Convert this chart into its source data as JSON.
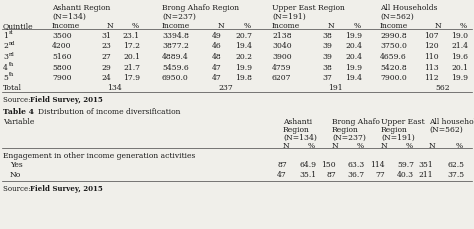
{
  "table1_data": [
    [
      "1",
      "st",
      "3500",
      "31",
      "23.1",
      "3394.8",
      "49",
      "20.7",
      "2138",
      "38",
      "19.9",
      "2990.8",
      "107",
      "19.0"
    ],
    [
      "2",
      "nd",
      "4200",
      "23",
      "17.2",
      "3877.2",
      "46",
      "19.4",
      "3040",
      "39",
      "20.4",
      "3750.0",
      "120",
      "21.4"
    ],
    [
      "3",
      "rd",
      "5160",
      "27",
      "20.1",
      "4889.4",
      "48",
      "20.2",
      "3900",
      "39",
      "20.4",
      "4659.6",
      "110",
      "19.6"
    ],
    [
      "4",
      "th",
      "5800",
      "29",
      "21.7",
      "5459.6",
      "47",
      "19.9",
      "4759",
      "38",
      "19.9",
      "5420.8",
      "113",
      "20.1"
    ],
    [
      "5",
      "th",
      "7900",
      "24",
      "17.9",
      "6950.0",
      "47",
      "19.8",
      "6207",
      "37",
      "19.4",
      "7900.0",
      "112",
      "19.9"
    ],
    [
      "Total",
      "",
      "",
      "134",
      "",
      "",
      "237",
      "",
      "",
      "191",
      "",
      "",
      "562",
      ""
    ]
  ],
  "table2_data": [
    [
      "Yes",
      "87",
      "64.9",
      "150",
      "63.3",
      "114",
      "59.7",
      "351",
      "62.5"
    ],
    [
      "No",
      "47",
      "35.1",
      "87",
      "36.7",
      "77",
      "40.3",
      "211",
      "37.5"
    ]
  ],
  "bg_color": "#f0efea",
  "text_color": "#1a1a1a",
  "line_color": "#444444"
}
